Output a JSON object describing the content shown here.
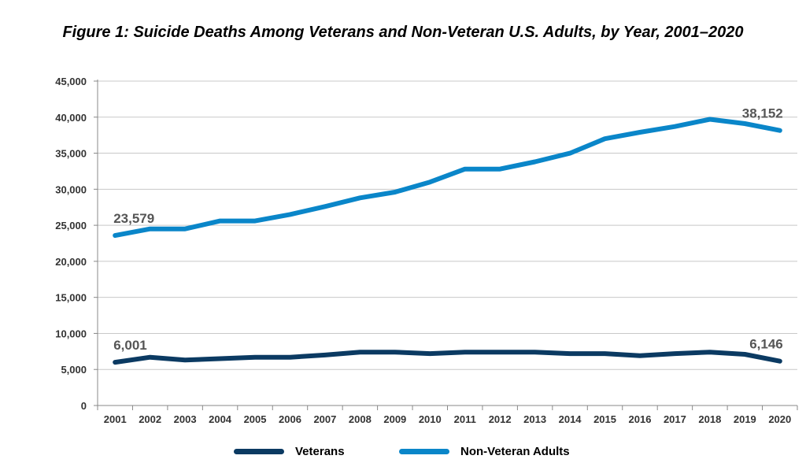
{
  "chart_data": {
    "type": "line",
    "title": "Figure 1: Suicide Deaths Among Veterans and Non-Veteran U.S. Adults, by Year, 2001–2020",
    "xlabel": "",
    "ylabel": "",
    "categories": [
      "2001",
      "2002",
      "2003",
      "2004",
      "2005",
      "2006",
      "2007",
      "2008",
      "2009",
      "2010",
      "2011",
      "2012",
      "2013",
      "2014",
      "2015",
      "2016",
      "2017",
      "2018",
      "2019",
      "2020"
    ],
    "ylim": [
      0,
      45000
    ],
    "yticks": [
      0,
      5000,
      10000,
      15000,
      20000,
      25000,
      30000,
      35000,
      40000,
      45000
    ],
    "ytick_labels": [
      "0",
      "5,000",
      "10,000",
      "15,000",
      "20,000",
      "25,000",
      "30,000",
      "35,000",
      "40,000",
      "45,000"
    ],
    "grid": "horizontal",
    "legend_position": "bottom",
    "series": [
      {
        "name": "Veterans",
        "color": "#0b3a62",
        "values": [
          6001,
          6700,
          6300,
          6500,
          6700,
          6700,
          7000,
          7400,
          7400,
          7200,
          7400,
          7400,
          7400,
          7200,
          7200,
          6900,
          7200,
          7400,
          7100,
          6146
        ]
      },
      {
        "name": "Non-Veteran Adults",
        "color": "#0a86c9",
        "values": [
          23579,
          24500,
          24500,
          25600,
          25600,
          26500,
          27600,
          28800,
          29600,
          31000,
          32800,
          32800,
          33800,
          35000,
          37000,
          37900,
          38700,
          39700,
          39100,
          38152
        ]
      }
    ],
    "annotations": [
      {
        "series": 0,
        "index": 0,
        "text": "6,001"
      },
      {
        "series": 0,
        "index": 19,
        "text": "6,146"
      },
      {
        "series": 1,
        "index": 0,
        "text": "23,579"
      },
      {
        "series": 1,
        "index": 19,
        "text": "38,152"
      }
    ]
  }
}
